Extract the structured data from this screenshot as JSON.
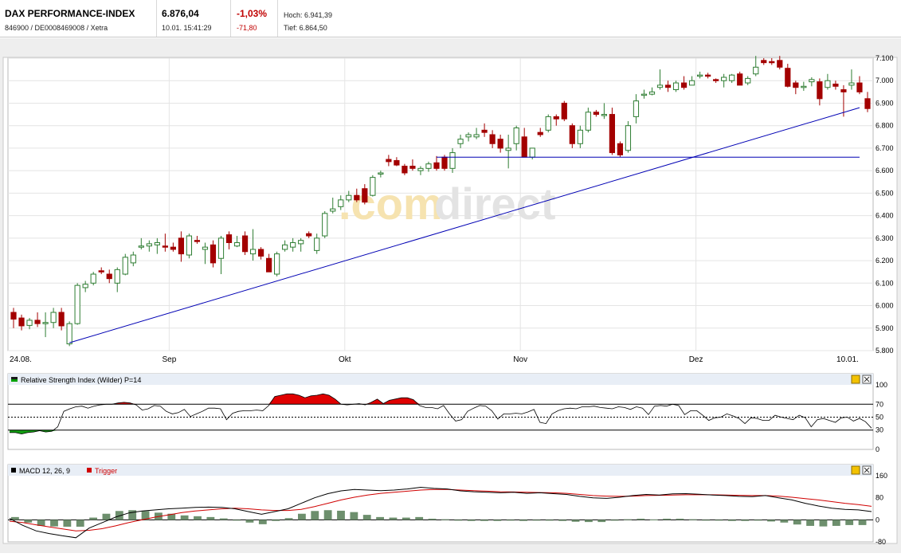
{
  "header": {
    "index_name": "DAX PERFORMANCE-INDEX",
    "identifier": "846900 / DE0008469008 / Xetra",
    "price": "6.876,04",
    "datetime": "10.01. 15:41:29",
    "change_pct": "-1,03%",
    "change_abs": "-71,80",
    "high_label": "Hoch: 6.941,39",
    "low_label": "Tief: 6.864,50"
  },
  "watermark": {
    "part1": ".com",
    "part2": "direct"
  },
  "colors": {
    "up": "#2e7d32",
    "down": "#a30000",
    "trend": "#0000b4",
    "rsi_fill_high": "#e00000",
    "rsi_fill_low": "#129e12",
    "macd": "#000000",
    "trigger": "#d00000",
    "hist": "#6d8f6d"
  },
  "chart_data": [
    {
      "type": "candlestick",
      "x_labels": [
        "24.08.",
        "Sep",
        "Okt",
        "Nov",
        "Dez",
        "10.01."
      ],
      "y_ticks": [
        "5.800",
        "5.900",
        "6.000",
        "6.100",
        "6.200",
        "6.300",
        "6.400",
        "6.500",
        "6.600",
        "6.700",
        "6.800",
        "6.900",
        "7.000",
        "7.100"
      ],
      "ylim": [
        5800,
        7100
      ],
      "x_tick_index": [
        0,
        20,
        42,
        64,
        86,
        105
      ],
      "ohlc": [
        [
          5970,
          5990,
          5900,
          5940
        ],
        [
          5945,
          5960,
          5890,
          5910
        ],
        [
          5912,
          5945,
          5895,
          5935
        ],
        [
          5935,
          5970,
          5905,
          5920
        ],
        [
          5920,
          5970,
          5860,
          5925
        ],
        [
          5925,
          5990,
          5900,
          5970
        ],
        [
          5970,
          5990,
          5890,
          5910
        ],
        [
          5830,
          5930,
          5820,
          5920
        ],
        [
          5920,
          6100,
          5915,
          6090
        ],
        [
          6080,
          6110,
          6060,
          6095
        ],
        [
          6100,
          6150,
          6090,
          6140
        ],
        [
          6155,
          6170,
          6140,
          6150
        ],
        [
          6140,
          6160,
          6100,
          6120
        ],
        [
          6100,
          6170,
          6060,
          6160
        ],
        [
          6140,
          6230,
          6135,
          6215
        ],
        [
          6190,
          6240,
          6175,
          6225
        ],
        [
          6260,
          6300,
          6250,
          6265
        ],
        [
          6265,
          6290,
          6240,
          6275
        ],
        [
          6270,
          6300,
          6230,
          6280
        ],
        [
          6265,
          6320,
          6240,
          6260
        ],
        [
          6260,
          6280,
          6240,
          6250
        ],
        [
          6300,
          6330,
          6195,
          6230
        ],
        [
          6225,
          6320,
          6210,
          6310
        ],
        [
          6290,
          6310,
          6275,
          6285
        ],
        [
          6250,
          6280,
          6185,
          6260
        ],
        [
          6270,
          6290,
          6170,
          6190
        ],
        [
          6210,
          6310,
          6140,
          6300
        ],
        [
          6315,
          6330,
          6250,
          6280
        ],
        [
          6265,
          6310,
          6260,
          6280
        ],
        [
          6310,
          6330,
          6225,
          6240
        ],
        [
          6230,
          6340,
          6200,
          6250
        ],
        [
          6250,
          6260,
          6205,
          6220
        ],
        [
          6210,
          6230,
          6150,
          6150
        ],
        [
          6140,
          6240,
          6130,
          6230
        ],
        [
          6250,
          6290,
          6240,
          6270
        ],
        [
          6260,
          6300,
          6240,
          6280
        ],
        [
          6275,
          6300,
          6240,
          6290
        ],
        [
          6320,
          6330,
          6300,
          6310
        ],
        [
          6245,
          6320,
          6230,
          6300
        ],
        [
          6310,
          6420,
          6300,
          6410
        ],
        [
          6420,
          6480,
          6410,
          6430
        ],
        [
          6440,
          6490,
          6425,
          6470
        ],
        [
          6470,
          6510,
          6460,
          6490
        ],
        [
          6490,
          6520,
          6460,
          6470
        ],
        [
          6520,
          6540,
          6450,
          6460
        ],
        [
          6490,
          6580,
          6485,
          6570
        ],
        [
          6585,
          6600,
          6570,
          6590
        ],
        [
          6650,
          6670,
          6620,
          6640
        ],
        [
          6645,
          6660,
          6620,
          6625
        ],
        [
          6620,
          6630,
          6580,
          6590
        ],
        [
          6620,
          6650,
          6600,
          6610
        ],
        [
          6600,
          6620,
          6580,
          6610
        ],
        [
          6610,
          6640,
          6595,
          6630
        ],
        [
          6635,
          6665,
          6600,
          6610
        ],
        [
          6660,
          6670,
          6600,
          6610
        ],
        [
          6610,
          6700,
          6590,
          6680
        ],
        [
          6720,
          6760,
          6700,
          6740
        ],
        [
          6750,
          6770,
          6730,
          6760
        ],
        [
          6750,
          6790,
          6740,
          6760
        ],
        [
          6780,
          6810,
          6750,
          6770
        ],
        [
          6760,
          6780,
          6700,
          6720
        ],
        [
          6740,
          6760,
          6680,
          6700
        ],
        [
          6690,
          6760,
          6610,
          6700
        ],
        [
          6720,
          6800,
          6690,
          6790
        ],
        [
          6750,
          6790,
          6660,
          6660
        ],
        [
          6660,
          6700,
          6650,
          6700
        ],
        [
          6770,
          6790,
          6750,
          6760
        ],
        [
          6780,
          6850,
          6770,
          6840
        ],
        [
          6840,
          6850,
          6800,
          6830
        ],
        [
          6900,
          6910,
          6820,
          6830
        ],
        [
          6800,
          6810,
          6700,
          6720
        ],
        [
          6720,
          6800,
          6700,
          6780
        ],
        [
          6780,
          6880,
          6770,
          6860
        ],
        [
          6860,
          6870,
          6840,
          6850
        ],
        [
          6850,
          6900,
          6830,
          6850
        ],
        [
          6850,
          6880,
          6670,
          6680
        ],
        [
          6720,
          6730,
          6660,
          6670
        ],
        [
          6690,
          6820,
          6680,
          6800
        ],
        [
          6840,
          6940,
          6810,
          6910
        ],
        [
          6940,
          6960,
          6920,
          6940
        ],
        [
          6940,
          6970,
          6935,
          6950
        ],
        [
          6970,
          7050,
          6960,
          6980
        ],
        [
          6980,
          7000,
          6950,
          6970
        ],
        [
          6960,
          7000,
          6950,
          6990
        ],
        [
          6990,
          7020,
          6960,
          6970
        ],
        [
          6980,
          7020,
          6980,
          7000
        ],
        [
          7020,
          7040,
          7010,
          7025
        ],
        [
          7025,
          7035,
          7010,
          7020
        ],
        [
          7005,
          7010,
          6990,
          7000
        ],
        [
          7000,
          7030,
          6970,
          7015
        ],
        [
          7000,
          7030,
          6990,
          7025
        ],
        [
          7030,
          7040,
          6980,
          6980
        ],
        [
          6990,
          7020,
          6980,
          7010
        ],
        [
          7030,
          7110,
          7020,
          7060
        ],
        [
          7090,
          7100,
          7070,
          7080
        ],
        [
          7085,
          7100,
          7070,
          7080
        ],
        [
          7090,
          7110,
          7050,
          7060
        ],
        [
          7055,
          7075,
          6970,
          6975
        ],
        [
          6990,
          7000,
          6940,
          6970
        ],
        [
          6970,
          6995,
          6955,
          6975
        ],
        [
          6995,
          7015,
          6975,
          7005
        ],
        [
          6995,
          7010,
          6890,
          6920
        ],
        [
          6970,
          7030,
          6960,
          7000
        ],
        [
          6985,
          7000,
          6960,
          6975
        ],
        [
          6960,
          6980,
          6840,
          6950
        ],
        [
          6980,
          7050,
          6960,
          6990
        ],
        [
          6990,
          7020,
          6940,
          6950
        ],
        [
          6920,
          6950,
          6860,
          6876
        ]
      ],
      "overlays": [
        {
          "type": "trendline",
          "from": [
            7,
            5835
          ],
          "to": [
            106,
            6880
          ]
        },
        {
          "type": "horizontal",
          "from": [
            53,
            6660
          ],
          "to": [
            106,
            6660
          ]
        }
      ]
    },
    {
      "type": "line",
      "title": "Relative Strength Index (Wilder) P=14",
      "y_ticks": [
        "0",
        "30",
        "50",
        "70",
        "100"
      ],
      "ylim": [
        0,
        100
      ],
      "reference_lines": [
        30,
        50,
        70
      ],
      "values": [
        26,
        26,
        24,
        26,
        27,
        29,
        27,
        28,
        35,
        59,
        63,
        66,
        67,
        64,
        67,
        69,
        70,
        70,
        72,
        73,
        72,
        69,
        61,
        63,
        68,
        67,
        59,
        55,
        57,
        62,
        51,
        55,
        59,
        64,
        64,
        63,
        46,
        56,
        59,
        60,
        60,
        61,
        60,
        68,
        82,
        84,
        86,
        86,
        84,
        80,
        83,
        84,
        86,
        84,
        78,
        70,
        69,
        70,
        71,
        69,
        73,
        78,
        71,
        76,
        78,
        80,
        80,
        77,
        68,
        65,
        65,
        63,
        68,
        55,
        44,
        46,
        59,
        64,
        68,
        67,
        60,
        47,
        55,
        55,
        56,
        55,
        58,
        62,
        42,
        40,
        55,
        60,
        63,
        64,
        63,
        66,
        66,
        67,
        65,
        64,
        63,
        66,
        65,
        62,
        66,
        64,
        54,
        67,
        68,
        67,
        70,
        68,
        54,
        60,
        60,
        53,
        45,
        49,
        50,
        55,
        52,
        48,
        40,
        49,
        48,
        45,
        45,
        53,
        50,
        48,
        46,
        53,
        49,
        35,
        46,
        48,
        45,
        42,
        49,
        50,
        44,
        48,
        43,
        33
      ]
    },
    {
      "type": "line+bar",
      "title": "MACD 12, 26, 9",
      "legend": [
        "MACD 12, 26, 9",
        "Trigger"
      ],
      "y_ticks": [
        "-80",
        "0",
        "80",
        "160"
      ],
      "ylim": [
        -80,
        160
      ],
      "series": [
        {
          "name": "MACD 12, 26, 9",
          "values": [
            5,
            -20,
            -40,
            -50,
            -58,
            -65,
            -30,
            -10,
            10,
            25,
            32,
            36,
            40,
            42,
            45,
            46,
            45,
            40,
            30,
            20,
            30,
            40,
            60,
            80,
            95,
            105,
            110,
            108,
            106,
            108,
            112,
            118,
            114,
            112,
            105,
            102,
            100,
            98,
            100,
            96,
            98,
            95,
            92,
            85,
            80,
            78,
            82,
            88,
            92,
            90,
            94,
            95,
            93,
            90,
            88,
            85,
            84,
            88,
            80,
            72,
            60,
            50,
            42,
            38,
            36,
            30
          ]
        },
        {
          "name": "Trigger",
          "values": [
            -5,
            -10,
            -18,
            -26,
            -33,
            -40,
            -38,
            -32,
            -22,
            -10,
            0,
            10,
            18,
            26,
            32,
            36,
            40,
            42,
            40,
            36,
            34,
            34,
            38,
            48,
            60,
            72,
            82,
            90,
            96,
            100,
            104,
            108,
            110,
            110,
            108,
            106,
            104,
            102,
            101,
            100,
            99,
            98,
            96,
            92,
            88,
            86,
            85,
            86,
            88,
            89,
            90,
            91,
            91,
            91,
            90,
            89,
            88,
            88,
            86,
            82,
            77,
            72,
            66,
            60,
            55,
            49
          ]
        },
        {
          "name": "",
          "type": "bar",
          "values": [
            10,
            -10,
            -22,
            -24,
            -25,
            -25,
            8,
            22,
            32,
            35,
            32,
            26,
            22,
            16,
            13,
            10,
            5,
            -2,
            -10,
            -16,
            -4,
            6,
            22,
            32,
            35,
            33,
            28,
            18,
            10,
            8,
            8,
            10,
            4,
            2,
            -3,
            -4,
            -4,
            -4,
            -1,
            -4,
            -1,
            -3,
            -4,
            -7,
            -8,
            -8,
            -3,
            2,
            4,
            1,
            4,
            4,
            2,
            -1,
            -2,
            -4,
            -4,
            0,
            -6,
            -10,
            -17,
            -22,
            -24,
            -22,
            -19,
            -19
          ]
        }
      ]
    }
  ]
}
